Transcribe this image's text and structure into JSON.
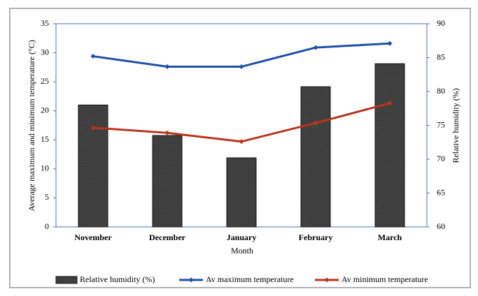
{
  "chart_data": {
    "type": "bar-line",
    "x_label": "Month",
    "y_label": "Average maximum  and minimum  temperature (°C)",
    "y2_label": "Relative humidity  (%)",
    "categories": [
      "November",
      "December",
      "January",
      "February",
      "March"
    ],
    "series": [
      {
        "name": "Relative humidity  (%)",
        "type": "bar",
        "axis": "y2",
        "color": "#3a3a3a",
        "values": [
          78,
          73.5,
          70.2,
          80.7,
          84.1
        ]
      },
      {
        "name": "Av maximum temperature",
        "type": "line",
        "color": "#1f4fa8",
        "values": [
          29.4,
          27.6,
          27.6,
          30.9,
          31.6
        ]
      },
      {
        "name": "Av minimum temperature",
        "type": "line",
        "color": "#b8341c",
        "values": [
          17.1,
          16.2,
          14.7,
          17.9,
          21.3
        ]
      }
    ],
    "ylim": [
      0,
      35
    ],
    "yticks": [
      0,
      5,
      10,
      15,
      20,
      25,
      30,
      35
    ],
    "y2lim": [
      60,
      90
    ],
    "y2ticks": [
      60,
      65,
      70,
      75,
      80,
      85,
      90
    ]
  }
}
